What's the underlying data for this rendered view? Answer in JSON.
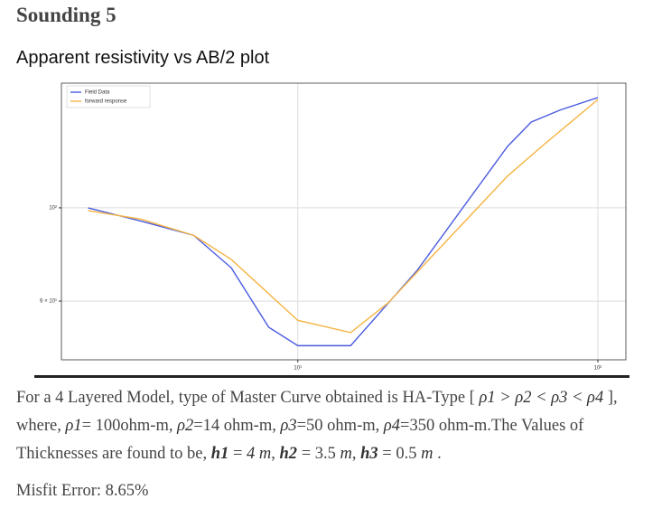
{
  "heading": "Sounding 5",
  "subheading": "Apparent resistivity vs AB/2 plot",
  "chart_data": {
    "type": "line",
    "log_x": true,
    "log_y": true,
    "grid": true,
    "legend": "upper left",
    "xlim": [
      1.63,
      124
    ],
    "ylim": [
      43.5,
      198
    ],
    "xticks": [
      {
        "value": 10,
        "label": "10¹"
      },
      {
        "value": 100,
        "label": "10²"
      }
    ],
    "yticks": [
      {
        "value": 100,
        "label": "10²"
      },
      {
        "value": 60,
        "label": "6 × 10¹"
      }
    ],
    "series": [
      {
        "name": "Field Data",
        "color": "#4a5be0",
        "x": [
          2,
          3,
          4.5,
          6,
          8,
          10,
          15,
          25,
          50,
          60,
          75,
          100
        ],
        "values": [
          100,
          93,
          86,
          72,
          52,
          47,
          47,
          71,
          140,
          160,
          171,
          183
        ]
      },
      {
        "name": "forward response",
        "color": "#f5b442",
        "x": [
          2,
          3,
          4.5,
          6,
          10,
          15,
          20,
          50,
          65,
          100
        ],
        "values": [
          98.5,
          94,
          86,
          75.4,
          54,
          50.5,
          59.4,
          119,
          140,
          181
        ]
      }
    ]
  },
  "paragraph": [
    "For a 4 Layered Model, type of Master Curve obtained is HA-Type [ ",
    "ρ1 > ρ2 < ρ3 < ρ4",
    " ], where, ",
    "ρ1",
    "= 100ohm-m, ",
    "ρ2",
    "=14 ohm-m, ",
    "ρ3",
    "=50 ohm-m, ",
    "ρ4",
    "=350 ohm-m.The Values of Thicknesses are found to be, ",
    "h1",
    " = ",
    "4 m",
    ", ",
    "h2",
    " = 3.5 ",
    "m",
    ", ",
    "h3",
    " = 0.5 ",
    "m",
    " ."
  ],
  "misfit": "Misfit Error: 8.65%"
}
